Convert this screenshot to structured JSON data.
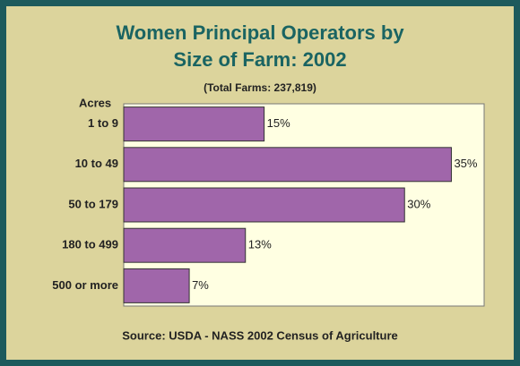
{
  "chart_data": {
    "type": "bar",
    "orientation": "horizontal",
    "title_lines": [
      "Women Principal Operators by",
      "Size of Farm: 2002"
    ],
    "subtitle": "(Total Farms: 237,819)",
    "y_label": "Acres",
    "categories": [
      "1 to 9",
      "10 to 49",
      "50 to 179",
      "180 to 499",
      "500 or more"
    ],
    "values": [
      15,
      35,
      30,
      13,
      7
    ],
    "value_labels": [
      "15%",
      "35%",
      "30%",
      "13%",
      "7%"
    ],
    "color": "#a066aa",
    "xlim": [
      0,
      38.5
    ],
    "source": "Source: USDA - NASS 2002 Census of Agriculture"
  }
}
